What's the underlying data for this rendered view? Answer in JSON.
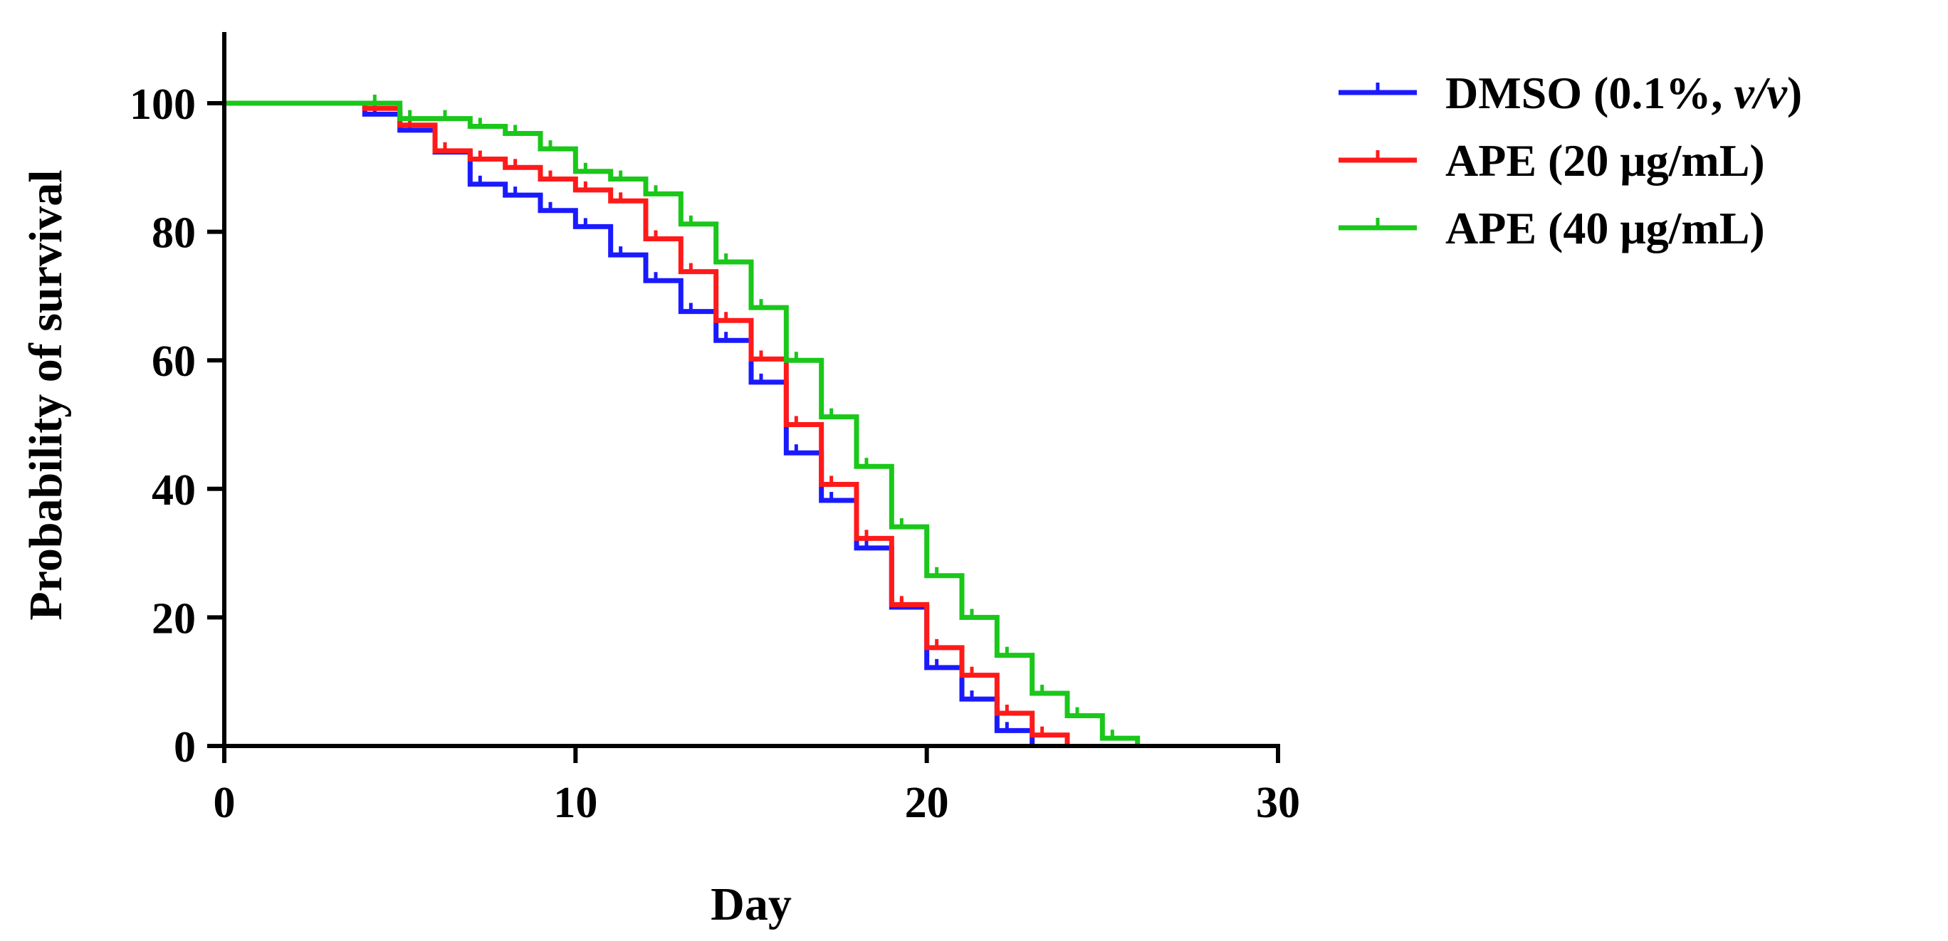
{
  "chart_data": {
    "type": "line",
    "subtype": "kaplan-meier step survival curve",
    "xlabel": "Day",
    "ylabel": "Probability of survival",
    "xlim": [
      0,
      30
    ],
    "ylim": [
      0,
      110
    ],
    "xticks": [
      0,
      10,
      20,
      30
    ],
    "yticks": [
      0,
      20,
      40,
      60,
      80,
      100
    ],
    "xtick_labels": [
      "0",
      "10",
      "20",
      "30"
    ],
    "ytick_labels": [
      "0",
      "20",
      "40",
      "60",
      "80",
      "100"
    ],
    "grid": false,
    "legend_position": "top-right, outside plot",
    "series": [
      {
        "name": "DMSO (0.1%, v/v)",
        "label_main": "DMSO (0.1%, ",
        "label_italic": "v/v",
        "label_end": ")",
        "color": "#1a1aff",
        "x": [
          0,
          4,
          5,
          6,
          7,
          8,
          9,
          10,
          11,
          12,
          13,
          14,
          15,
          16,
          17,
          18,
          19,
          20,
          21,
          22,
          23
        ],
        "y": [
          100,
          98.3,
          95.8,
          92.4,
          87.4,
          85.7,
          83.3,
          80.8,
          76.4,
          72.4,
          67.6,
          63.1,
          56.6,
          45.6,
          38.2,
          30.8,
          21.6,
          12.2,
          7.3,
          2.4,
          0
        ]
      },
      {
        "name": "APE (20 μg/mL)",
        "label_main": "APE (20 μg/mL)",
        "label_italic": "",
        "label_end": "",
        "color": "#ff1a1a",
        "x": [
          0,
          4,
          5,
          6,
          7,
          8,
          9,
          10,
          11,
          12,
          13,
          14,
          15,
          16,
          17,
          18,
          19,
          20,
          21,
          22,
          23,
          24
        ],
        "y": [
          100,
          99.2,
          96.6,
          92.6,
          91.3,
          90.0,
          88.2,
          86.5,
          84.8,
          78.9,
          73.8,
          66.2,
          60.2,
          50.0,
          40.7,
          32.3,
          22.0,
          15.3,
          11.0,
          5.1,
          1.7,
          0
        ]
      },
      {
        "name": "APE (40 μg/mL)",
        "label_main": "APE (40 μg/mL)",
        "label_italic": "",
        "label_end": "",
        "color": "#1ac71a",
        "x": [
          0,
          4,
          5,
          6,
          7,
          8,
          9,
          10,
          11,
          12,
          13,
          14,
          15,
          16,
          17,
          18,
          19,
          20,
          21,
          22,
          23,
          24,
          25,
          26
        ],
        "y": [
          100,
          100,
          97.6,
          97.6,
          96.4,
          95.3,
          92.9,
          89.4,
          88.2,
          85.9,
          81.2,
          75.3,
          68.2,
          60.0,
          51.2,
          43.5,
          34.1,
          26.5,
          20.0,
          14.1,
          8.2,
          4.7,
          1.2,
          0
        ]
      }
    ]
  }
}
